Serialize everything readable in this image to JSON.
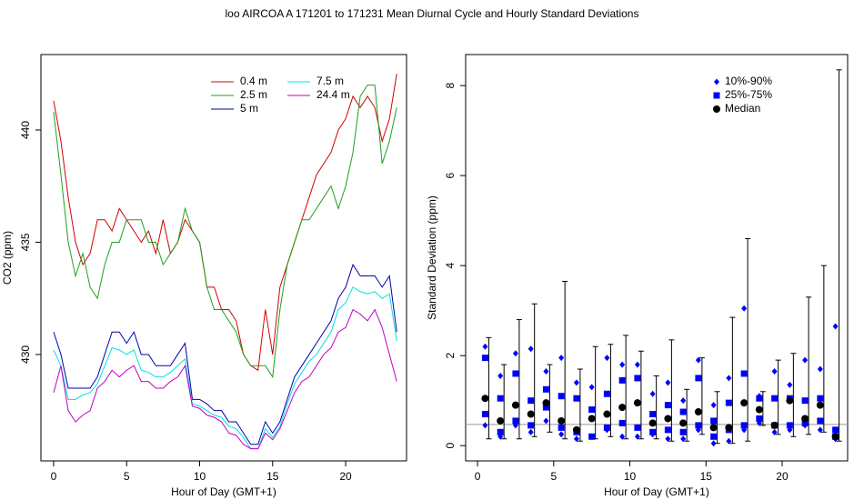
{
  "title": "loo   AIRCOA A   171201 to 171231   Mean Diurnal Cycle and Hourly Standard Deviations",
  "chart_data": [
    {
      "type": "line",
      "x_label": "Hour of Day (GMT+1)",
      "y_label": "CO2 (ppm)",
      "x": [
        0,
        0.5,
        1,
        1.5,
        2,
        2.5,
        3,
        3.5,
        4,
        4.5,
        5,
        5.5,
        6,
        6.5,
        7,
        7.5,
        8,
        8.5,
        9,
        9.5,
        10,
        10.5,
        11,
        11.5,
        12,
        12.5,
        13,
        13.5,
        14,
        14.5,
        15,
        15.5,
        16,
        16.5,
        17,
        17.5,
        18,
        18.5,
        19,
        19.5,
        20,
        20.5,
        21,
        21.5,
        22,
        22.5,
        23,
        23.5
      ],
      "xlim": [
        -0.87,
        24.17
      ],
      "xticks": [
        0,
        5,
        10,
        15,
        20
      ],
      "ylim": [
        425.26,
        443.36
      ],
      "yticks": [
        430,
        435,
        440
      ],
      "series": [
        {
          "name": "0.4 m",
          "color": "#d40000",
          "values": [
            441.3,
            439.5,
            437,
            435,
            434,
            434.5,
            436,
            436,
            435.5,
            436.5,
            436,
            435.5,
            435,
            435.5,
            434.5,
            436,
            434.5,
            435,
            436,
            435.5,
            435,
            433,
            433,
            432,
            432,
            431.5,
            430,
            429.5,
            429.3,
            432,
            430,
            433,
            434,
            435,
            436,
            437,
            438,
            438.5,
            439,
            440,
            440.5,
            441.5,
            441,
            441.5,
            441,
            439.5,
            440.5,
            442.5
          ]
        },
        {
          "name": "2.5 m",
          "color": "#1ea01e",
          "values": [
            440.8,
            438,
            435,
            433.5,
            434.5,
            433,
            432.5,
            434,
            435,
            435,
            436,
            436,
            436,
            435,
            435,
            434,
            434.5,
            435,
            436.5,
            435.5,
            435,
            433,
            432,
            432,
            431.5,
            431,
            430,
            429.5,
            429.5,
            429.5,
            429,
            432,
            434,
            435,
            436,
            436,
            436.5,
            437,
            437.5,
            436.5,
            437.5,
            439,
            441.5,
            442,
            442,
            438.5,
            439.5,
            441
          ]
        },
        {
          "name": "5 m",
          "color": "#0000b0",
          "values": [
            431,
            430,
            428.5,
            428.5,
            428.5,
            428.5,
            429,
            430,
            431,
            431,
            430.5,
            431,
            430,
            430,
            429.5,
            429.5,
            429.5,
            430,
            430.5,
            428,
            428,
            427.8,
            427.5,
            427.5,
            427,
            427,
            426.5,
            426,
            426,
            427,
            426.5,
            427,
            428,
            429,
            429.5,
            430,
            430.5,
            431,
            431.5,
            432.5,
            433,
            434,
            433.5,
            433.5,
            433.5,
            433,
            433.5,
            431
          ]
        },
        {
          "name": "7.5 m",
          "color": "#00e0e0",
          "values": [
            430.2,
            429.5,
            428,
            428,
            428.2,
            428.3,
            428.7,
            429.5,
            430.3,
            430.2,
            430,
            430.2,
            429.3,
            429.2,
            429,
            429,
            429.2,
            429.5,
            429.8,
            427.8,
            427.7,
            427.5,
            427.3,
            427.2,
            426.8,
            426.7,
            426.3,
            425.8,
            425.8,
            426.7,
            426.3,
            426.8,
            427.8,
            428.7,
            429.2,
            429.7,
            430,
            430.5,
            431,
            432,
            432.3,
            433,
            432.8,
            432.7,
            432.8,
            432.5,
            432.7,
            430.6
          ]
        },
        {
          "name": "24.4 m",
          "color": "#c000c0",
          "values": [
            428.3,
            429.5,
            427.5,
            427,
            427.3,
            427.5,
            428.5,
            428.8,
            429.3,
            429,
            429.3,
            429.5,
            428.8,
            428.8,
            428.5,
            428.5,
            428.8,
            429,
            429.5,
            427.7,
            427.6,
            427.3,
            427.2,
            427,
            426.5,
            426.4,
            426,
            425.8,
            425.8,
            426.5,
            426.2,
            426.7,
            427.5,
            428.3,
            428.8,
            429,
            429.5,
            430,
            430.3,
            431,
            431.2,
            432,
            431.8,
            431.5,
            432,
            431.2,
            430,
            428.8
          ]
        }
      ]
    },
    {
      "type": "scatter",
      "x_label": "Hour of Day (GMT+1)",
      "y_label": "Standard Deviation (ppm)",
      "x": [
        0.5,
        1.5,
        2.5,
        3.5,
        4.5,
        5.5,
        6.5,
        7.5,
        8.5,
        9.5,
        10.5,
        11.5,
        12.5,
        13.5,
        14.5,
        15.5,
        16.5,
        17.5,
        18.5,
        19.5,
        20.5,
        21.5,
        22.5,
        23.5
      ],
      "xlim": [
        -0.78,
        24.3
      ],
      "xticks": [
        0,
        5,
        10,
        15,
        20
      ],
      "ylim": [
        -0.34,
        8.69
      ],
      "yticks": [
        0,
        2,
        4,
        6,
        8
      ],
      "reference_line": 0.47,
      "whiskers": {
        "color": "#000000",
        "low": [
          0.15,
          0.15,
          0.15,
          0.2,
          0.3,
          0.15,
          0.1,
          0.15,
          0.2,
          0.15,
          0.15,
          0.15,
          0.1,
          0.1,
          0.25,
          0.05,
          0.05,
          0.1,
          0.45,
          0.25,
          0.2,
          0.25,
          0.3,
          0.1
        ],
        "high": [
          2.4,
          1.8,
          2.8,
          3.15,
          1.8,
          3.65,
          1.7,
          2.2,
          2.25,
          2.45,
          2.1,
          1.55,
          2.35,
          1.25,
          1.95,
          1.2,
          2.85,
          4.6,
          1.2,
          1.9,
          2.05,
          3.3,
          4.0,
          8.35
        ]
      },
      "series": [
        {
          "name": "10%-90%",
          "color": "#0000ff",
          "marker": "diamond",
          "low": [
            0.45,
            0.2,
            0.45,
            0.3,
            0.55,
            0.25,
            0.15,
            0.2,
            0.35,
            0.2,
            0.2,
            0.25,
            0.15,
            0.15,
            0.35,
            0.05,
            0.1,
            0.35,
            0.5,
            0.3,
            0.35,
            0.45,
            0.35,
            0.15
          ],
          "high": [
            2.2,
            1.55,
            2.05,
            2.15,
            1.65,
            1.95,
            1.4,
            1.3,
            1.95,
            1.8,
            1.8,
            1.15,
            1.4,
            1.0,
            1.9,
            0.9,
            1.5,
            3.05,
            1.1,
            1.65,
            1.35,
            1.9,
            1.7,
            2.65
          ]
        },
        {
          "name": "25%-75%",
          "color": "#0000ff",
          "marker": "square",
          "low": [
            0.7,
            0.3,
            0.55,
            0.45,
            0.85,
            0.4,
            0.3,
            0.2,
            0.4,
            0.5,
            0.4,
            0.3,
            0.35,
            0.3,
            0.45,
            0.2,
            0.35,
            0.45,
            0.6,
            0.45,
            0.45,
            0.5,
            0.55,
            0.2
          ],
          "high": [
            1.95,
            1.05,
            1.6,
            1.0,
            1.25,
            1.1,
            1.05,
            0.8,
            1.15,
            1.45,
            1.5,
            0.7,
            0.9,
            0.75,
            1.5,
            0.55,
            0.95,
            1.6,
            1.05,
            1.05,
            1.05,
            1.0,
            1.05,
            0.35
          ]
        },
        {
          "name": "Median",
          "color": "#000000",
          "marker": "circle",
          "values": [
            1.05,
            0.55,
            0.9,
            0.7,
            0.95,
            0.55,
            0.35,
            0.6,
            0.7,
            0.85,
            0.95,
            0.5,
            0.6,
            0.5,
            0.75,
            0.4,
            0.4,
            0.95,
            0.8,
            0.45,
            1.0,
            0.6,
            0.9,
            0.2
          ]
        }
      ]
    }
  ]
}
